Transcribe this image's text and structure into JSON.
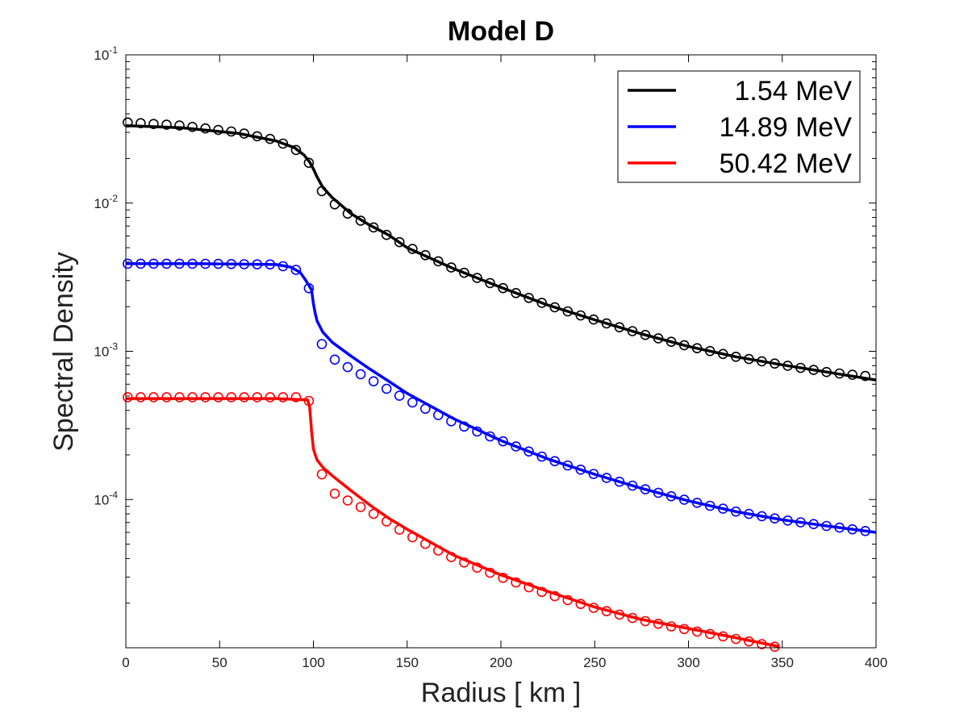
{
  "chart_data": {
    "type": "line",
    "title": "Model D",
    "xlabel": "Radius [ km ]",
    "ylabel": "Spectral Density",
    "xlim": [
      0,
      400
    ],
    "ylim": [
      1e-05,
      0.1
    ],
    "yscale": "log",
    "x_ticks": [
      0,
      50,
      100,
      150,
      200,
      250,
      300,
      350,
      400
    ],
    "y_ticks": [
      {
        "value": 0.1,
        "base": "10",
        "exp": "-1"
      },
      {
        "value": 0.01,
        "base": "10",
        "exp": "-2"
      },
      {
        "value": 0.001,
        "base": "10",
        "exp": "-3"
      },
      {
        "value": 0.0001,
        "base": "10",
        "exp": "-4"
      }
    ],
    "legend_position": "top-right",
    "series": [
      {
        "name": "1.54 MeV",
        "color": "#000000",
        "line": [
          [
            0,
            0.0333
          ],
          [
            30,
            0.0322
          ],
          [
            60,
            0.0295
          ],
          [
            80,
            0.0263
          ],
          [
            90,
            0.0236
          ],
          [
            95,
            0.0211
          ],
          [
            98,
            0.0189
          ],
          [
            100,
            0.017
          ],
          [
            102,
            0.015
          ],
          [
            105,
            0.0128
          ],
          [
            110,
            0.0109
          ],
          [
            120,
            0.0085
          ],
          [
            130,
            0.0071
          ],
          [
            140,
            0.0061
          ],
          [
            150,
            0.005
          ],
          [
            175,
            0.0036
          ],
          [
            200,
            0.0027
          ],
          [
            225,
            0.00205
          ],
          [
            250,
            0.00163
          ],
          [
            275,
            0.00131
          ],
          [
            300,
            0.00108
          ],
          [
            325,
            0.00092
          ],
          [
            350,
            0.00081
          ],
          [
            375,
            0.00072
          ],
          [
            400,
            0.00064
          ]
        ],
        "markers": [
          [
            1,
            0.035
          ],
          [
            30,
            0.0333
          ],
          [
            60,
            0.03
          ],
          [
            80,
            0.0266
          ],
          [
            90,
            0.0231
          ],
          [
            94,
            0.0215
          ],
          [
            98,
            0.0184
          ],
          [
            102,
            0.0136
          ],
          [
            106,
            0.0112
          ],
          [
            110,
            0.0101
          ],
          [
            120,
            0.0082
          ],
          [
            130,
            0.0071
          ],
          [
            140,
            0.006
          ],
          [
            150,
            0.0051
          ],
          [
            175,
            0.0036
          ],
          [
            200,
            0.0027
          ],
          [
            225,
            0.00205
          ],
          [
            250,
            0.00163
          ],
          [
            275,
            0.00131
          ],
          [
            300,
            0.00108
          ],
          [
            325,
            0.00092
          ],
          [
            350,
            0.00081
          ],
          [
            375,
            0.00072
          ],
          [
            400,
            0.00067
          ]
        ]
      },
      {
        "name": "14.89 MeV",
        "color": "#0000ff",
        "line": [
          [
            0,
            0.0039
          ],
          [
            40,
            0.0039
          ],
          [
            80,
            0.00385
          ],
          [
            88,
            0.0037
          ],
          [
            93,
            0.0034
          ],
          [
            96,
            0.003
          ],
          [
            99,
            0.0026
          ],
          [
            100,
            0.0021
          ],
          [
            101,
            0.0018
          ],
          [
            102,
            0.0016
          ],
          [
            105,
            0.00135
          ],
          [
            110,
            0.00115
          ],
          [
            120,
            0.00093
          ],
          [
            130,
            0.00076
          ],
          [
            140,
            0.00063
          ],
          [
            150,
            0.00052
          ],
          [
            175,
            0.00035
          ],
          [
            200,
            0.00025
          ],
          [
            225,
            0.000188
          ],
          [
            250,
            0.000148
          ],
          [
            275,
            0.000119
          ],
          [
            300,
            9.8e-05
          ],
          [
            325,
            8.3e-05
          ],
          [
            350,
            7.3e-05
          ],
          [
            375,
            6.6e-05
          ],
          [
            400,
            6e-05
          ]
        ],
        "markers": [
          [
            1,
            0.0039
          ],
          [
            40,
            0.0039
          ],
          [
            80,
            0.00385
          ],
          [
            90,
            0.0036
          ],
          [
            94,
            0.0033
          ],
          [
            98,
            0.0026
          ],
          [
            102,
            0.00135
          ],
          [
            106,
            0.001
          ],
          [
            110,
            0.0009
          ],
          [
            120,
            0.00076
          ],
          [
            130,
            0.00065
          ],
          [
            140,
            0.00055
          ],
          [
            150,
            0.00047
          ],
          [
            175,
            0.00033
          ],
          [
            200,
            0.00025
          ],
          [
            225,
            0.000188
          ],
          [
            250,
            0.000148
          ],
          [
            275,
            0.000119
          ],
          [
            300,
            9.8e-05
          ],
          [
            325,
            8.3e-05
          ],
          [
            350,
            7.3e-05
          ],
          [
            375,
            6.6e-05
          ],
          [
            400,
            6e-05
          ]
        ]
      },
      {
        "name": "50.42 MeV",
        "color": "#ff0000",
        "line": [
          [
            0,
            0.00048
          ],
          [
            40,
            0.00048
          ],
          [
            80,
            0.00048
          ],
          [
            97,
            0.00047
          ],
          [
            98,
            0.00042
          ],
          [
            99,
            0.00029
          ],
          [
            100,
            0.00022
          ],
          [
            101,
            0.0002
          ],
          [
            102,
            0.000185
          ],
          [
            105,
            0.000165
          ],
          [
            110,
            0.000145
          ],
          [
            120,
            0.000115
          ],
          [
            130,
            9.2e-05
          ],
          [
            140,
            7.5e-05
          ],
          [
            150,
            6.3e-05
          ],
          [
            175,
            4.2e-05
          ],
          [
            200,
            3.1e-05
          ],
          [
            225,
            2.4e-05
          ],
          [
            250,
            1.88e-05
          ],
          [
            275,
            1.55e-05
          ],
          [
            300,
            1.35e-05
          ],
          [
            325,
            1.17e-05
          ],
          [
            348,
            1.02e-05
          ]
        ],
        "markers": [
          [
            1,
            0.00049
          ],
          [
            40,
            0.00049
          ],
          [
            80,
            0.00049
          ],
          [
            90,
            0.00049
          ],
          [
            94,
            0.00049
          ],
          [
            98,
            0.00046
          ],
          [
            102,
            0.000196
          ],
          [
            106,
            0.000125
          ],
          [
            110,
            0.000112
          ],
          [
            120,
            9.6e-05
          ],
          [
            130,
            8.3e-05
          ],
          [
            140,
            7e-05
          ],
          [
            150,
            5.8e-05
          ],
          [
            175,
            4e-05
          ],
          [
            200,
            3e-05
          ],
          [
            225,
            2.3e-05
          ],
          [
            250,
            1.85e-05
          ],
          [
            275,
            1.53e-05
          ],
          [
            300,
            1.32e-05
          ],
          [
            325,
            1.15e-05
          ],
          [
            347,
            1.01e-05
          ]
        ]
      }
    ]
  }
}
